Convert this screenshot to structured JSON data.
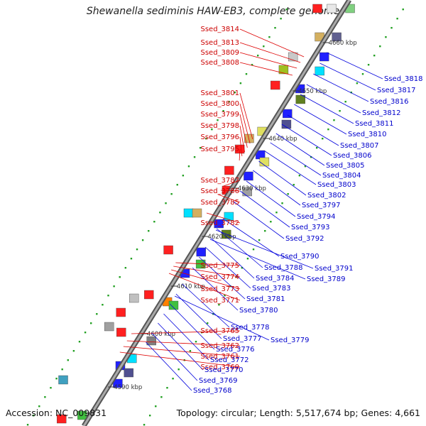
{
  "header": {
    "title": "Shewanella sediminis HAW-EB3, complete genome"
  },
  "footer": {
    "accession": "Accession: NC_009831",
    "topology": "Topology: circular; Length: 5,517,674 bp; Genes: 4,661"
  },
  "colors": {
    "backbone": "#888888",
    "reverse_label": "#cc0000",
    "forward_label": "#0000cc",
    "dots": "#22a022"
  },
  "kbp_ticks": [
    "4590 kbp",
    "4600 kbp",
    "4610 kbp",
    "4620 kbp",
    "4630 kbp",
    "4640 kbp",
    "4650 kbp",
    "4660 kbp"
  ],
  "left_labels": [
    "Ssed_3814",
    "Ssed_3813",
    "Ssed_3809",
    "Ssed_3808",
    "Ssed_3801",
    "Ssed_3800",
    "Ssed_3799",
    "Ssed_3798",
    "Ssed_3796",
    "Ssed_3795",
    "Ssed_3787",
    "Ssed_3786",
    "Ssed_3785",
    "Ssed_3782",
    "Ssed_3775",
    "Ssed_3774",
    "Ssed_3773",
    "Ssed_3771",
    "Ssed_3765",
    "Ssed_3762",
    "Ssed_3761",
    "Ssed_3760"
  ],
  "right_labels": [
    "Ssed_3818",
    "Ssed_3817",
    "Ssed_3816",
    "Ssed_3812",
    "Ssed_3811",
    "Ssed_3810",
    "Ssed_3807",
    "Ssed_3806",
    "Ssed_3805",
    "Ssed_3804",
    "Ssed_3803",
    "Ssed_3802",
    "Ssed_3797",
    "Ssed_3794",
    "Ssed_3793",
    "Ssed_3792",
    "Ssed_3790",
    "Ssed_3791",
    "Ssed_3788",
    "Ssed_3789",
    "Ssed_3784",
    "Ssed_3783",
    "Ssed_3781",
    "Ssed_3780",
    "Ssed_3778",
    "Ssed_3779",
    "Ssed_3777",
    "Ssed_3776",
    "Ssed_3772",
    "Ssed_3770",
    "Ssed_3769",
    "Ssed_3768"
  ]
}
